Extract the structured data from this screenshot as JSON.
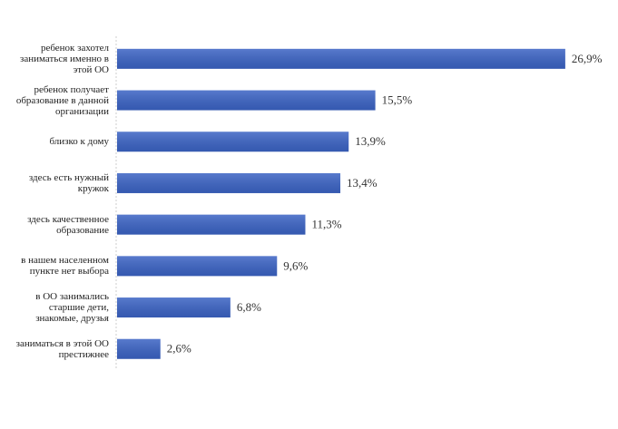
{
  "chart_data": {
    "type": "barh",
    "categories": [
      "ребенок захотел заниматься именно в этой ОО",
      "ребенок получает образование в данной организации",
      "близко к дому",
      "здесь есть нужный кружок",
      "здесь качественное образование",
      "в нашем населенном пункте нет выбора",
      "в ОО занимались старшие дети, знакомые, друзья",
      "заниматься в этой ОО престижнее"
    ],
    "values": [
      26.9,
      15.5,
      13.9,
      13.4,
      11.3,
      9.6,
      6.8,
      2.6
    ],
    "value_labels": [
      "26,9%",
      "15,5%",
      "13,9%",
      "13,4%",
      "11,3%",
      "9,6%",
      "6,8%",
      "2,6%"
    ],
    "color": "#3b63c4"
  }
}
